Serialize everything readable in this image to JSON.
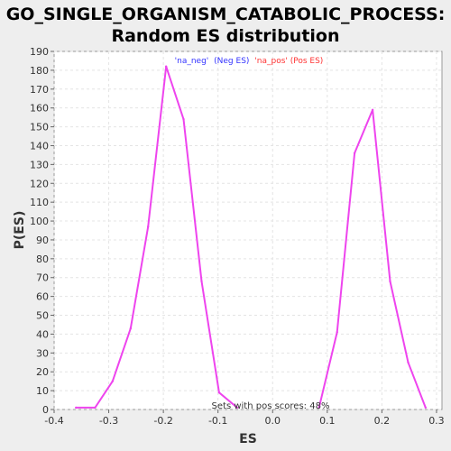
{
  "chart_data": {
    "type": "line",
    "title": "GO_SINGLE_ORGANISM_CATABOLIC_PROCESS:",
    "subtitle": "Random ES distribution",
    "xlabel": "ES",
    "ylabel": "P(ES)",
    "xlim": [
      -0.4,
      0.31
    ],
    "ylim": [
      0,
      190
    ],
    "x_ticks": [
      -0.4,
      -0.3,
      -0.2,
      -0.1,
      0.0,
      0.1,
      0.2,
      0.3
    ],
    "x_tick_labels": [
      "-0.4",
      "-0.3",
      "-0.2",
      "-0.1",
      "0.0",
      "0.1",
      "0.2",
      "0.3"
    ],
    "y_ticks": [
      0,
      10,
      20,
      30,
      40,
      50,
      60,
      70,
      80,
      90,
      100,
      110,
      120,
      130,
      140,
      150,
      160,
      170,
      180,
      190
    ],
    "grid": true,
    "legend": {
      "placement": "top-center",
      "items": [
        {
          "text": "'na_neg'",
          "color": "#3333ff"
        },
        {
          "text": "(Neg ES)",
          "color": "#3333ff"
        },
        {
          "text": "'na_pos' (Pos ES)",
          "color": "#ff3333"
        }
      ]
    },
    "annotation": "Sets with pos scores: 48%",
    "series": [
      {
        "color": "#ee44ee",
        "x": [
          -0.36,
          -0.325,
          -0.293,
          -0.26,
          -0.228,
          -0.195,
          -0.163,
          -0.13,
          -0.098,
          -0.065
        ],
        "y": [
          1,
          1,
          15,
          43,
          97,
          182,
          154,
          68,
          9,
          1
        ]
      },
      {
        "color": "#ee44ee",
        "x": [
          0.085,
          0.118,
          0.15,
          0.183,
          0.215,
          0.248,
          0.28
        ],
        "y": [
          1,
          41,
          136,
          159,
          68,
          25,
          1
        ]
      }
    ]
  }
}
